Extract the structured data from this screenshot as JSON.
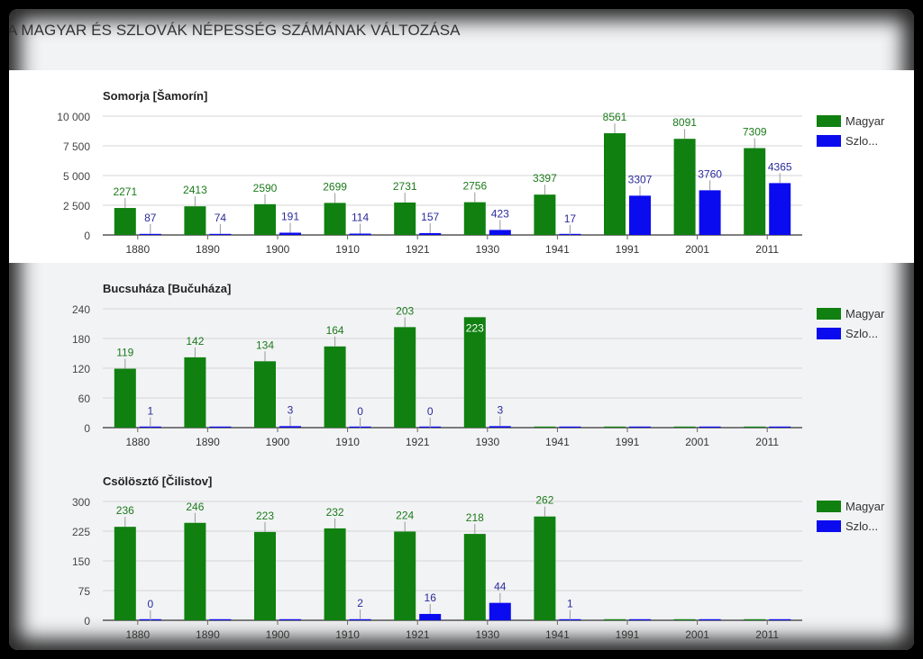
{
  "page": {
    "title": "A MAGYAR ÉS SZLOVÁK NÉPESSÉG SZÁMÁNAK VÁLTOZÁSA"
  },
  "colors": {
    "magyar": "#108010",
    "szlovak": "#0b0bef",
    "green_label": "#1a7a1a",
    "blue_label": "#2a2a9a"
  },
  "chart_data": [
    {
      "type": "bar",
      "title": "Somorja [Šamorín]",
      "categories": [
        "1880",
        "1890",
        "1900",
        "1910",
        "1921",
        "1930",
        "1941",
        "1991",
        "2001",
        "2011"
      ],
      "ylim": [
        0,
        10000
      ],
      "yticks": [
        "0",
        "2 500",
        "5 000",
        "7 500",
        "10 000"
      ],
      "ytick_values": [
        0,
        2500,
        5000,
        7500,
        10000
      ],
      "grid": true,
      "legend_position": "right",
      "series": [
        {
          "name": "Magyar",
          "legend_label": "Magyar",
          "values": [
            2271,
            2413,
            2590,
            2699,
            2731,
            2756,
            3397,
            8561,
            8091,
            7309
          ]
        },
        {
          "name": "Szlovák",
          "legend_label": "Szlo...",
          "values": [
            87,
            74,
            191,
            114,
            157,
            423,
            17,
            3307,
            3760,
            4365
          ]
        }
      ]
    },
    {
      "type": "bar",
      "title": "Bucsuháza [Bučuháza]",
      "categories": [
        "1880",
        "1890",
        "1900",
        "1910",
        "1921",
        "1930",
        "1941",
        "1991",
        "2001",
        "2011"
      ],
      "ylim": [
        0,
        240
      ],
      "yticks": [
        "0",
        "60",
        "120",
        "180",
        "240"
      ],
      "ytick_values": [
        0,
        60,
        120,
        180,
        240
      ],
      "grid": true,
      "legend_position": "right",
      "series": [
        {
          "name": "Magyar",
          "legend_label": "Magyar",
          "values": [
            119,
            142,
            134,
            164,
            203,
            223,
            null,
            null,
            null,
            null
          ]
        },
        {
          "name": "Szlovák",
          "legend_label": "Szlo...",
          "values": [
            1,
            null,
            3,
            0,
            0,
            3,
            null,
            null,
            null,
            null
          ]
        }
      ]
    },
    {
      "type": "bar",
      "title": "Csölösztő [Čilistov]",
      "categories": [
        "1880",
        "1890",
        "1900",
        "1910",
        "1921",
        "1930",
        "1941",
        "1991",
        "2001",
        "2011"
      ],
      "ylim": [
        0,
        300
      ],
      "yticks": [
        "0",
        "75",
        "150",
        "225",
        "300"
      ],
      "ytick_values": [
        0,
        75,
        150,
        225,
        300
      ],
      "grid": true,
      "legend_position": "right",
      "series": [
        {
          "name": "Magyar",
          "legend_label": "Magyar",
          "values": [
            236,
            246,
            223,
            232,
            224,
            218,
            262,
            null,
            null,
            null
          ]
        },
        {
          "name": "Szlovák",
          "legend_label": "Szlo...",
          "values": [
            0,
            null,
            null,
            2,
            16,
            44,
            1,
            null,
            null,
            null
          ]
        }
      ]
    }
  ]
}
